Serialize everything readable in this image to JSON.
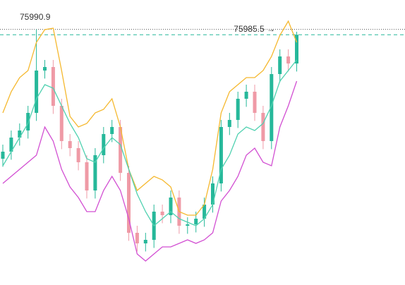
{
  "chart_data": {
    "type": "candlestick",
    "ylim": [
      75737.2,
      76020
    ],
    "up_color": "#26b89a",
    "down_color": "#ef9aa6",
    "open": [
      75862.5,
      75869.5,
      75883.5,
      75890.5,
      75908,
      75950,
      75953.5,
      75915,
      75880,
      75873,
      75859,
      75831,
      75866,
      75887,
      75894,
      75848.5,
      75789,
      75778.5,
      75782,
      75810,
      75806.5,
      75824,
      75796,
      75797.4,
      75803,
      75817,
      75838,
      75894,
      75901,
      75922,
      75929,
      75908,
      75880,
      75946.5,
      75964,
      75957
    ],
    "high": [
      75876.5,
      75890.5,
      75897.5,
      75915,
      75990.9,
      75960.5,
      75960.5,
      75922,
      75887,
      75880,
      75866,
      75873,
      75894,
      75901,
      75901,
      75855.5,
      75796,
      75789,
      75817,
      75817,
      75831,
      75831,
      75804.4,
      75810,
      75824,
      75845,
      75901,
      75908,
      75929,
      75936,
      75936,
      75915,
      75953.5,
      75971,
      75971,
      75988.5
    ],
    "low": [
      75854.5,
      75861.5,
      75875.5,
      75882.5,
      75900,
      75942,
      75907,
      75872,
      75865,
      75851,
      75823,
      75823,
      75858,
      75879,
      75840.5,
      75781,
      75770.5,
      75770.5,
      75774,
      75798.5,
      75798.5,
      75788,
      75788,
      75789.4,
      75795,
      75809,
      75830,
      75886,
      75893,
      75914,
      75900,
      75872,
      75872,
      75938.5,
      75949,
      75949
    ],
    "close": [
      75869.5,
      75883.5,
      75890.5,
      75908,
      75950,
      75953.5,
      75915,
      75880,
      75873,
      75859,
      75831,
      75866,
      75887,
      75894,
      75848.5,
      75789,
      75778.5,
      75782,
      75810,
      75806.5,
      75824,
      75796,
      75797.4,
      75803,
      75817,
      75838,
      75894,
      75901,
      75922,
      75929,
      75908,
      75880,
      75946.5,
      75964,
      75957,
      75985.5
    ],
    "bands": [
      {
        "color": "#f5b82e",
        "values": [
          75908,
          75929,
          75943,
          75950,
          75978,
          75990.6,
          75992,
          75950,
          75904.5,
          75894,
          75897.5,
          75908,
          75911.5,
          75922,
          75894,
          75852,
          75831,
          75838,
          75845,
          75841.5,
          75834.5,
          75810,
          75806.5,
          75806.5,
          75817,
          75852,
          75908,
          75929,
          75936,
          75943,
          75943,
          75950,
          75964,
          75985,
          75999,
          75978
        ]
      },
      {
        "color": "#4fd1b0",
        "values": [
          75855.5,
          75869.5,
          75883.5,
          75897.5,
          75922,
          75936,
          75932.5,
          75915,
          75897.5,
          75883.5,
          75862.5,
          75859,
          75873,
          75883.5,
          75876.5,
          75852,
          75827.5,
          75810,
          75796,
          75803,
          75810,
          75803,
          75799.5,
          75796,
          75803,
          75817,
          75852,
          75866,
          75887,
          75894,
          75890.5,
          75897.5,
          75915,
          75939.5,
          75950,
          75960.5
        ]
      },
      {
        "color": "#d24fd2",
        "values": [
          75838,
          75845,
          75852,
          75859,
          75866,
          75894,
          75880,
          75852,
          75834.5,
          75824,
          75810,
          75810,
          75831,
          75845,
          75831,
          75803,
          75768,
          75761,
          75768,
          75775,
          75775,
          75778.5,
          75782,
          75778.5,
          75782,
          75789,
          75820.5,
          75831,
          75845,
          75866,
          75873,
          75859,
          75855.5,
          75894,
          75915,
          75939.5
        ]
      }
    ],
    "annotations": [
      {
        "text": "75990.9"
      },
      {
        "text": "75985.5 →"
      }
    ]
  }
}
